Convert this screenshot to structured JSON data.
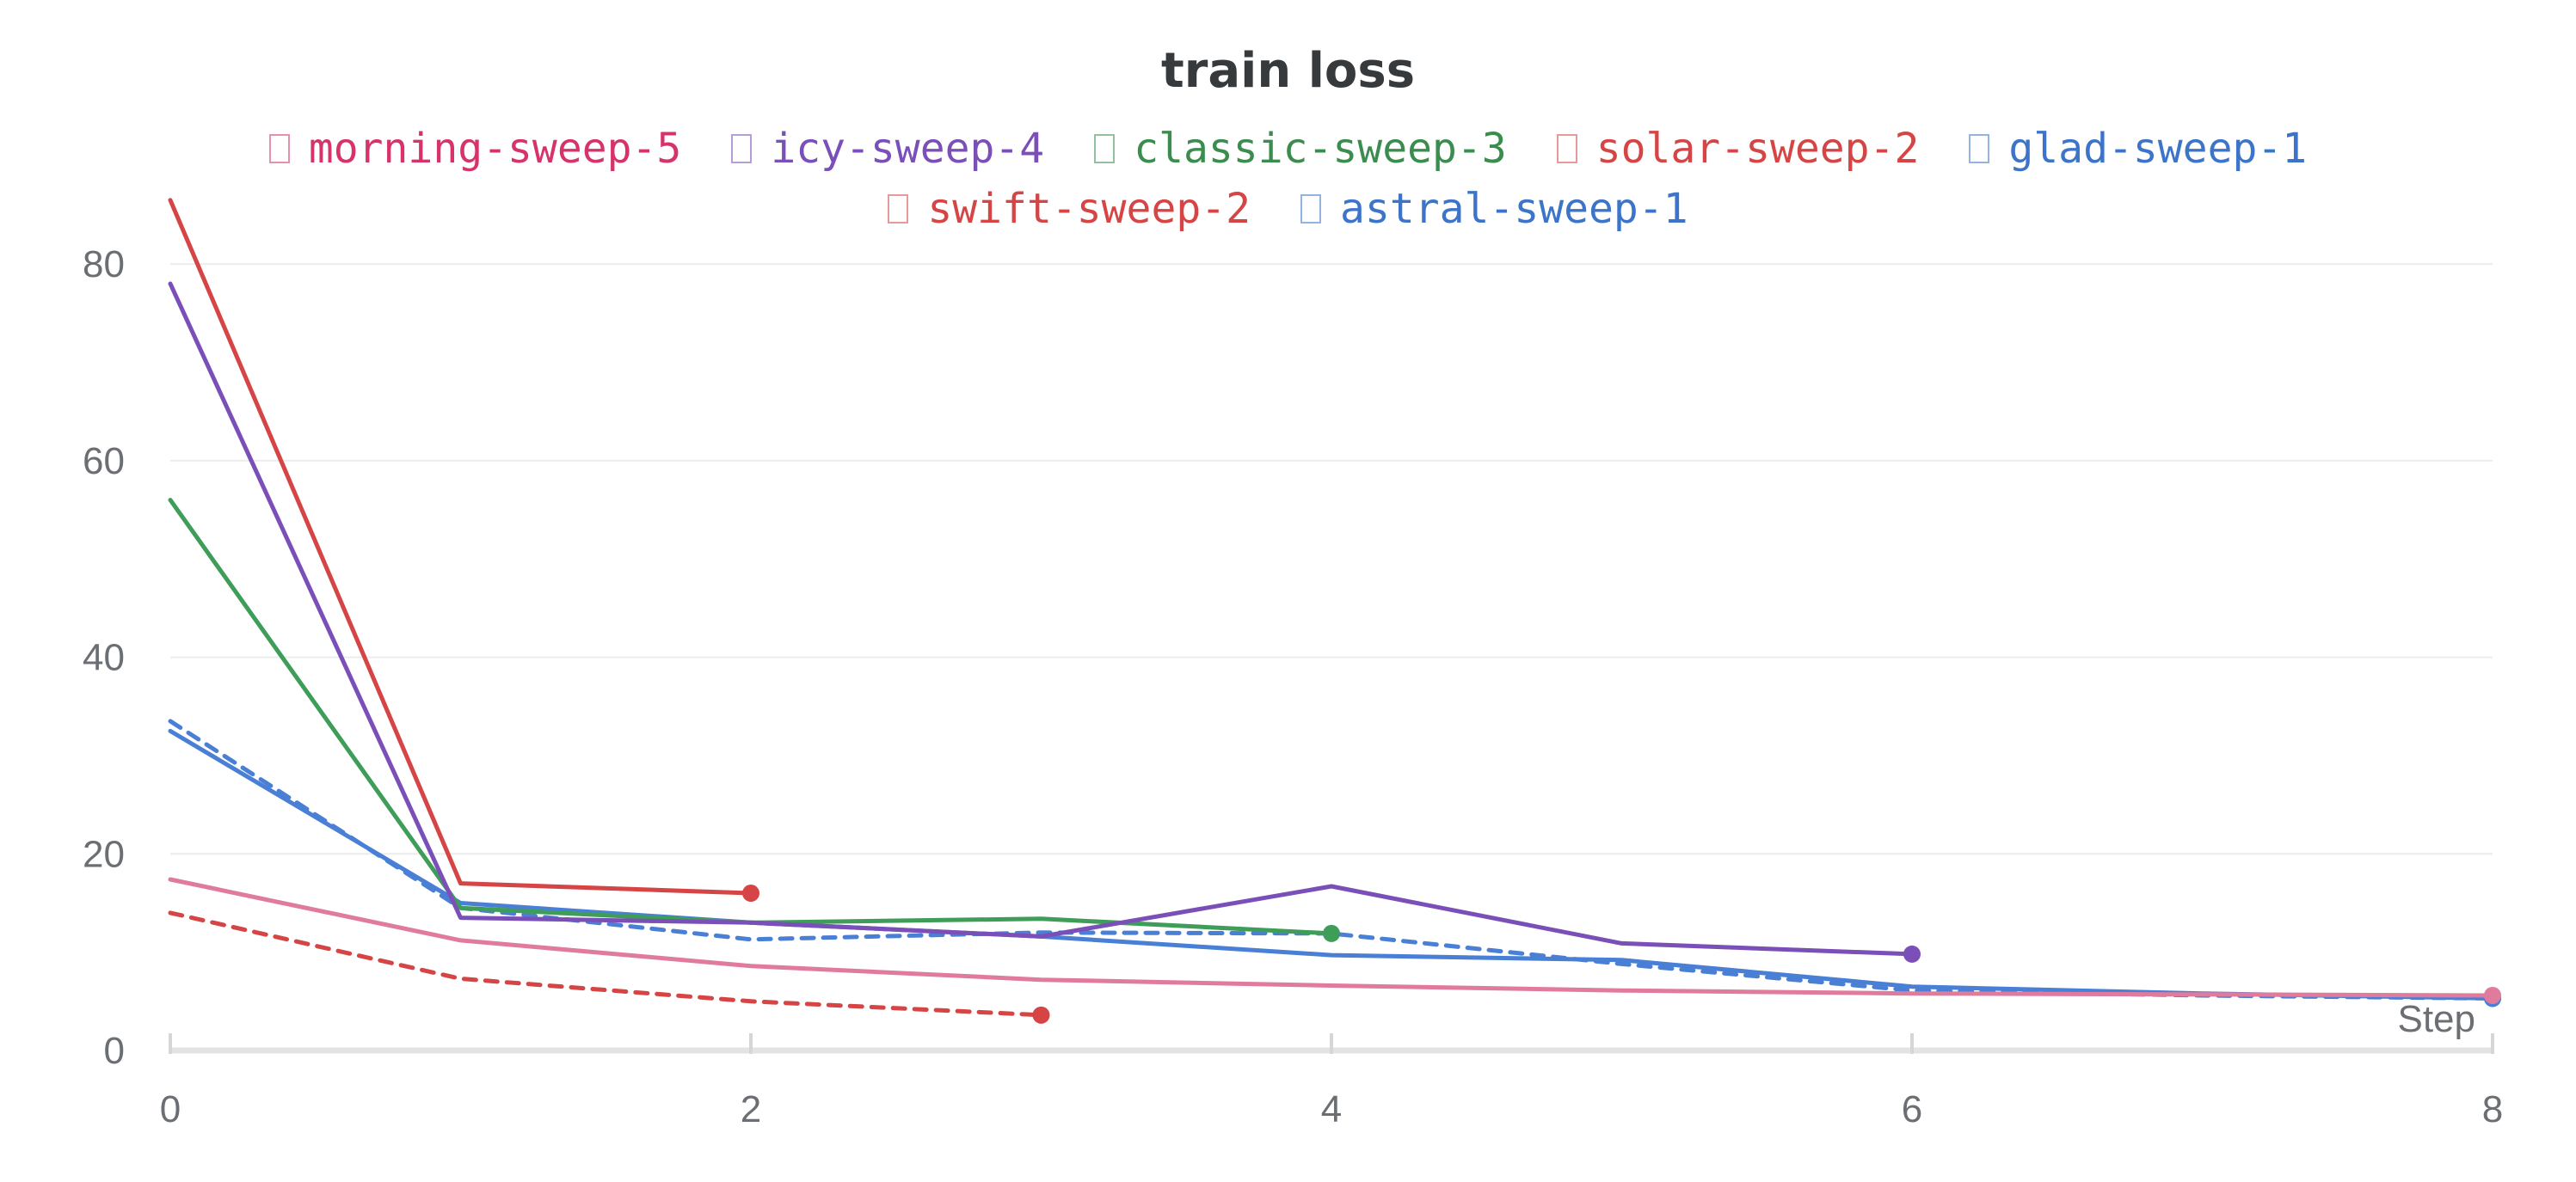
{
  "chart_data": {
    "type": "line",
    "title": "train loss",
    "xlabel": "Step",
    "ylabel": "",
    "xlim": [
      0,
      8
    ],
    "ylim": [
      0,
      85
    ],
    "x_ticks": [
      "0",
      "2",
      "4",
      "6",
      "8"
    ],
    "y_ticks": [
      "0",
      "20",
      "40",
      "60",
      "80"
    ],
    "grid": "horizontal",
    "legend_position": "top",
    "series": [
      {
        "name": "morning-sweep-5",
        "color": "#e07b9e",
        "legend_color": "#d7336b",
        "dashed": false,
        "end_marker": true,
        "x": [
          0,
          1,
          2,
          3,
          4,
          5,
          6,
          7,
          8
        ],
        "y": [
          17.4,
          11.2,
          8.6,
          7.2,
          6.6,
          6.1,
          5.8,
          5.7,
          5.6
        ]
      },
      {
        "name": "icy-sweep-4",
        "color": "#7b4fb8",
        "legend_color": "#7b4fb8",
        "dashed": false,
        "end_marker": true,
        "x": [
          0,
          1,
          2,
          3,
          4,
          5,
          6
        ],
        "y": [
          78,
          13.5,
          13,
          11.6,
          16.7,
          10.9,
          9.8
        ]
      },
      {
        "name": "classic-sweep-3",
        "color": "#3f9d5a",
        "legend_color": "#3b8c4f",
        "dashed": false,
        "end_marker": true,
        "x": [
          0,
          1,
          2,
          3,
          4
        ],
        "y": [
          56,
          14.5,
          13,
          13.4,
          11.9
        ]
      },
      {
        "name": "solar-sweep-2",
        "color": "#d64545",
        "legend_color": "#d64545",
        "dashed": false,
        "end_marker": true,
        "x": [
          0,
          1,
          2
        ],
        "y": [
          86.5,
          17,
          16
        ]
      },
      {
        "name": "glad-sweep-1",
        "color": "#4a7fd6",
        "legend_color": "#3b74c9",
        "dashed": false,
        "end_marker": true,
        "x": [
          0,
          1,
          2,
          3,
          4,
          5,
          6,
          7,
          8
        ],
        "y": [
          32.5,
          15,
          13,
          11.6,
          9.7,
          9.2,
          6.5,
          5.8,
          5.3
        ]
      },
      {
        "name": "swift-sweep-2",
        "color": "#d64545",
        "legend_color": "#d64545",
        "dashed": true,
        "end_marker": true,
        "x": [
          0,
          1,
          2,
          3
        ],
        "y": [
          14,
          7.3,
          5,
          3.6
        ]
      },
      {
        "name": "astral-sweep-1",
        "color": "#4a7fd6",
        "legend_color": "#3b74c9",
        "dashed": true,
        "end_marker": true,
        "x": [
          0,
          1,
          2,
          3,
          4,
          5,
          6,
          7,
          8
        ],
        "y": [
          33.5,
          14.5,
          11.3,
          12,
          11.9,
          8.8,
          6.1,
          5.6,
          5.3
        ]
      }
    ]
  }
}
